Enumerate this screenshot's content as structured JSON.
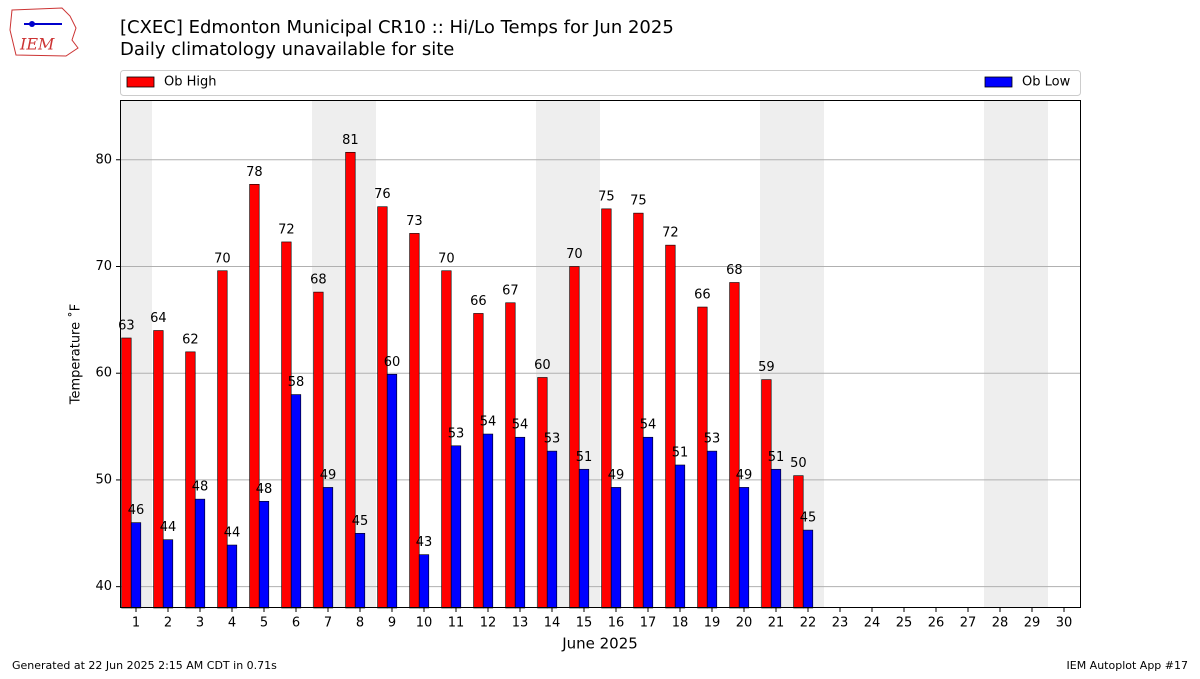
{
  "chart_data": {
    "type": "bar",
    "title": "[CXEC] Edmonton Municipal CR10 :: Hi/Lo Temps for Jun 2025",
    "subtitle": "Daily climatology unavailable for site",
    "logo_text": "IEM",
    "x_label": "June 2025",
    "y_label": "Temperature ˚F",
    "footer_left": "Generated at 22 Jun 2025 2:15 AM CDT in 0.71s",
    "footer_right": "IEM Autoplot App #17",
    "categories": [
      "1",
      "2",
      "3",
      "4",
      "5",
      "6",
      "7",
      "8",
      "9",
      "10",
      "11",
      "12",
      "13",
      "14",
      "15",
      "16",
      "17",
      "18",
      "19",
      "20",
      "21",
      "22",
      "23",
      "24",
      "25",
      "26",
      "27",
      "28",
      "29",
      "30"
    ],
    "series": [
      {
        "name": "Ob High",
        "color": "#ff0000",
        "values": [
          63.3,
          64.0,
          62.0,
          69.6,
          77.7,
          72.3,
          67.6,
          80.7,
          75.6,
          73.1,
          69.6,
          65.6,
          66.6,
          59.6,
          70.0,
          75.4,
          75.0,
          72.0,
          66.2,
          68.5,
          59.4,
          50.4,
          null,
          null,
          null,
          null,
          null,
          null,
          null,
          null
        ],
        "value_labels": [
          "63",
          "64",
          "62",
          "70",
          "78",
          "72",
          "68",
          "81",
          "76",
          "73",
          "70",
          "66",
          "67",
          "60",
          "70",
          "75",
          "75",
          "72",
          "66",
          "68",
          "59",
          "50",
          null,
          null,
          null,
          null,
          null,
          null,
          null,
          null
        ]
      },
      {
        "name": "Ob Low",
        "color": "#0000ff",
        "values": [
          46.0,
          44.4,
          48.2,
          43.9,
          48.0,
          58.0,
          49.3,
          45.0,
          59.9,
          43.0,
          53.2,
          54.3,
          54.0,
          52.7,
          51.0,
          49.3,
          54.0,
          51.4,
          52.7,
          49.3,
          51.0,
          45.3,
          null,
          null,
          null,
          null,
          null,
          null,
          null,
          null
        ],
        "value_labels": [
          "46",
          "44",
          "48",
          "44",
          "48",
          "58",
          "49",
          "45",
          "60",
          "43",
          "53",
          "54",
          "54",
          "53",
          "51",
          "49",
          "54",
          "51",
          "53",
          "49",
          "51",
          "45",
          null,
          null,
          null,
          null,
          null,
          null,
          null,
          null
        ]
      }
    ],
    "ylim": [
      38,
      85.6
    ],
    "yticks": [
      40,
      50,
      60,
      70,
      80
    ],
    "grid": true
  }
}
